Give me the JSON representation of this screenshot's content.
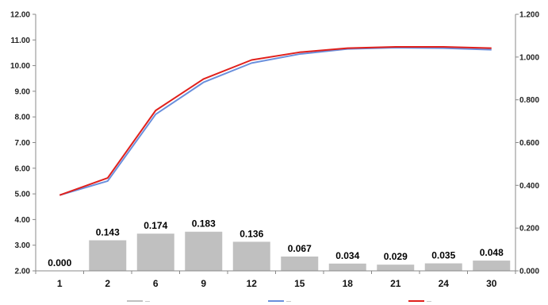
{
  "chart_data": {
    "type": "bar",
    "categories": [
      "1",
      "2",
      "6",
      "9",
      "12",
      "15",
      "18",
      "21",
      "24",
      "30"
    ],
    "series": [
      {
        "type": "bar",
        "axis": "right",
        "color": "#c0c0c0",
        "values": [
          0.0,
          0.143,
          0.174,
          0.183,
          0.136,
          0.067,
          0.034,
          0.029,
          0.035,
          0.048
        ],
        "labels": [
          "0.000",
          "0.143",
          "0.174",
          "0.183",
          "0.136",
          "0.067",
          "0.034",
          "0.029",
          "0.035",
          "0.048"
        ]
      },
      {
        "type": "line",
        "axis": "left",
        "color": "#6a8fdc",
        "values": [
          4.95,
          5.5,
          8.1,
          9.35,
          10.1,
          10.45,
          10.65,
          10.7,
          10.68,
          10.62
        ]
      },
      {
        "type": "line",
        "axis": "left",
        "color": "#e0201c",
        "values": [
          4.95,
          5.62,
          8.25,
          9.48,
          10.22,
          10.52,
          10.68,
          10.73,
          10.73,
          10.68
        ]
      }
    ],
    "y_left": {
      "lim": [
        2,
        12
      ],
      "ticks": [
        "2.00",
        "3.00",
        "4.00",
        "5.00",
        "6.00",
        "7.00",
        "8.00",
        "9.00",
        "10.00",
        "11.00",
        "12.00"
      ]
    },
    "y_right": {
      "lim": [
        0,
        1.2
      ],
      "ticks": [
        "0.000",
        "0.200",
        "0.400",
        "0.600",
        "0.800",
        "1.000",
        "1.200"
      ]
    },
    "grid": false,
    "legend_position": "bottom",
    "legend": [
      {
        "text": "—",
        "color": "#c0c0c0"
      },
      {
        "text": "—",
        "color": "#6a8fdc"
      },
      {
        "text": "—",
        "color": "#e0201c"
      }
    ]
  }
}
